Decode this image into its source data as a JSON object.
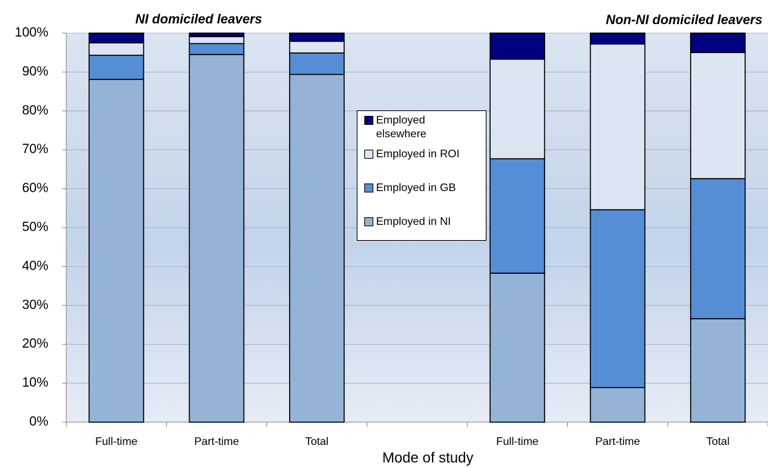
{
  "chart_data": {
    "type": "stacked_bar",
    "annotations": [
      "NI domiciled leavers",
      "Non-NI domiciled leavers"
    ],
    "x_label": "Mode of study",
    "categories": [
      "Full-time",
      "Part-time",
      "Total",
      null,
      "Full-time",
      "Part-time",
      "Total"
    ],
    "series": [
      {
        "name": "Employed in NI",
        "color": "#95b3d7",
        "values": [
          88.1,
          94.5,
          89.4,
          null,
          38.3,
          8.9,
          26.6
        ]
      },
      {
        "name": "Employed in GB",
        "color": "#558ed5",
        "values": [
          6.2,
          2.8,
          5.5,
          null,
          29.4,
          45.7,
          36.0
        ]
      },
      {
        "name": "Employed in ROI",
        "color": "#dce6f2",
        "values": [
          3.2,
          1.8,
          3.0,
          null,
          25.6,
          42.6,
          32.4
        ]
      },
      {
        "name": "Employed elsewhere",
        "color": "#000080",
        "values": [
          2.5,
          0.9,
          2.1,
          null,
          6.7,
          2.8,
          5.0
        ]
      }
    ],
    "ylim": [
      0,
      100
    ],
    "yticks": [
      {
        "value": 0,
        "label": "0%"
      },
      {
        "value": 10,
        "label": "10%"
      },
      {
        "value": 20,
        "label": "20%"
      },
      {
        "value": 30,
        "label": "30%"
      },
      {
        "value": 40,
        "label": "40%"
      },
      {
        "value": 50,
        "label": "50%"
      },
      {
        "value": 60,
        "label": "60%"
      },
      {
        "value": 70,
        "label": "70%"
      },
      {
        "value": 80,
        "label": "80%"
      },
      {
        "value": 90,
        "label": "90%"
      },
      {
        "value": 100,
        "label": "100%"
      }
    ],
    "grid": true,
    "legend": "center"
  }
}
